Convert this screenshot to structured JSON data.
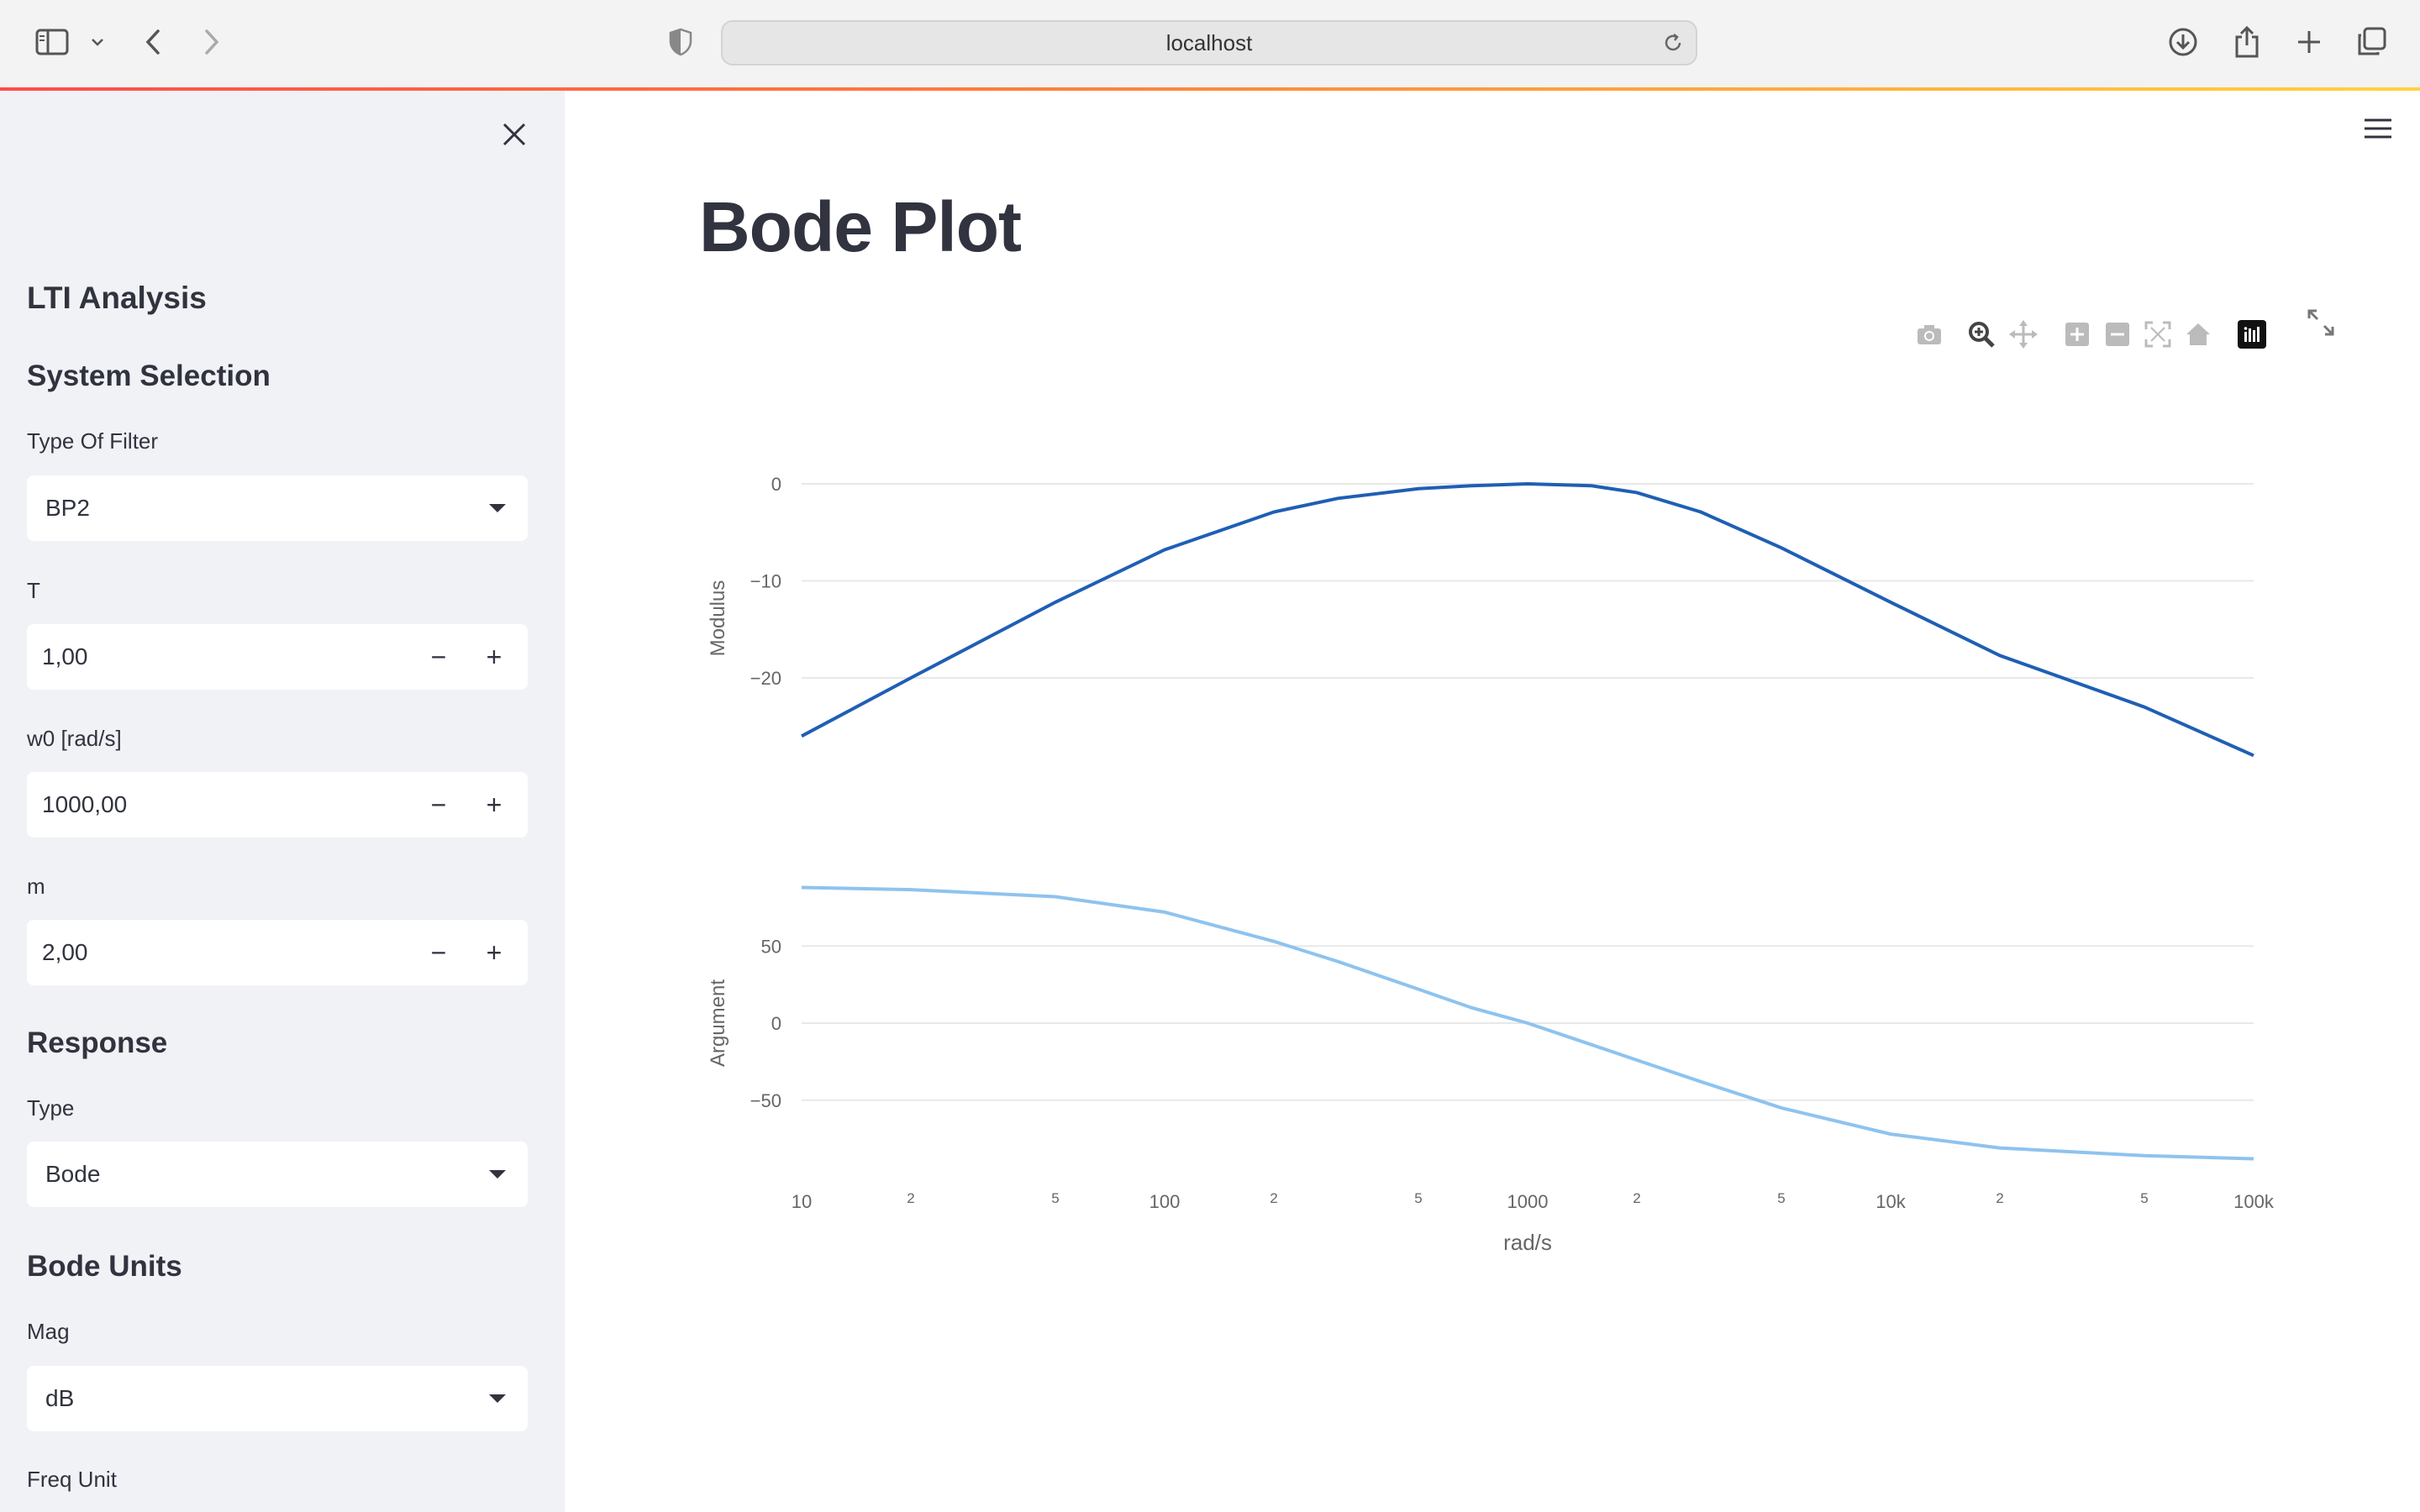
{
  "browser": {
    "url": "localhost"
  },
  "sidebar": {
    "title": "LTI Analysis",
    "system_selection": {
      "heading": "System Selection",
      "filter_type": {
        "label": "Type Of Filter",
        "value": "BP2"
      },
      "T": {
        "label": "T",
        "value": "1,00"
      },
      "w0": {
        "label": "w0 [rad/s]",
        "value": "1000,00"
      },
      "m": {
        "label": "m",
        "value": "2,00"
      }
    },
    "response": {
      "heading": "Response",
      "type": {
        "label": "Type",
        "value": "Bode"
      }
    },
    "bode_units": {
      "heading": "Bode Units",
      "mag": {
        "label": "Mag",
        "value": "dB"
      },
      "freq_unit_label": "Freq Unit"
    },
    "stepper": {
      "minus": "−",
      "plus": "+"
    }
  },
  "main": {
    "title": "Bode Plot"
  },
  "chart_data": {
    "type": "line",
    "x_scale": "log",
    "xlim": [
      10,
      100000
    ],
    "xlabel": "rad/s",
    "x_ticks": [
      "10",
      "2",
      "5",
      "100",
      "2",
      "5",
      "1000",
      "2",
      "5",
      "10k",
      "2",
      "5",
      "100k"
    ],
    "subplots": [
      {
        "ylabel": "Modulus",
        "y_ticks": [
          "0",
          "−10",
          "−20"
        ],
        "color": "#1f5fb4",
        "x": [
          10,
          20,
          50,
          100,
          200,
          300,
          500,
          700,
          1000,
          1500,
          2000,
          3000,
          5000,
          10000,
          20000,
          50000,
          100000
        ],
        "y": [
          -26.0,
          -20.0,
          -12.2,
          -6.8,
          -2.9,
          -1.5,
          -0.5,
          -0.2,
          0.0,
          -0.2,
          -0.9,
          -2.9,
          -6.6,
          -12.2,
          -17.7,
          -23.0,
          -28.0
        ]
      },
      {
        "ylabel": "Argument",
        "y_ticks": [
          "50",
          "0",
          "−50"
        ],
        "color": "#8ec3ee",
        "x": [
          10,
          20,
          50,
          100,
          200,
          300,
          500,
          700,
          1000,
          1500,
          2000,
          3000,
          5000,
          10000,
          20000,
          50000,
          100000
        ],
        "y": [
          88.0,
          86.6,
          82.0,
          72.0,
          53.0,
          40.0,
          22.0,
          10.0,
          0.0,
          -14.0,
          -24.0,
          -38.0,
          -55.0,
          -72.0,
          -81.0,
          -86.0,
          -88.0
        ]
      }
    ]
  }
}
